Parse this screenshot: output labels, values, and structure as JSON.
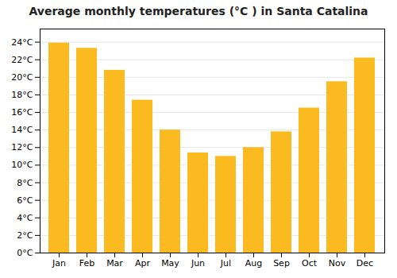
{
  "chart_data": {
    "type": "bar",
    "title": "Average monthly temperatures (°C ) in Santa Catalina",
    "categories": [
      "Jan",
      "Feb",
      "Mar",
      "Apr",
      "May",
      "Jun",
      "Jul",
      "Aug",
      "Sep",
      "Oct",
      "Nov",
      "Dec"
    ],
    "values": [
      23.9,
      23.3,
      20.8,
      17.4,
      14.0,
      11.4,
      11.0,
      12.0,
      13.8,
      16.5,
      19.5,
      22.2
    ],
    "color": "#FBBA1F",
    "ylim": [
      0,
      25.5
    ],
    "yticks": [
      {
        "value": 0,
        "label": "0°C"
      },
      {
        "value": 2,
        "label": "2°C"
      },
      {
        "value": 4,
        "label": "4°C"
      },
      {
        "value": 6,
        "label": "6°C"
      },
      {
        "value": 8,
        "label": "8°C"
      },
      {
        "value": 10,
        "label": "10°C"
      },
      {
        "value": 12,
        "label": "12°C"
      },
      {
        "value": 14,
        "label": "14°C"
      },
      {
        "value": 16,
        "label": "16°C"
      },
      {
        "value": 18,
        "label": "18°C"
      },
      {
        "value": 20,
        "label": "20°C"
      },
      {
        "value": 22,
        "label": "22°C"
      },
      {
        "value": 24,
        "label": "24°C"
      }
    ],
    "grid": true
  }
}
